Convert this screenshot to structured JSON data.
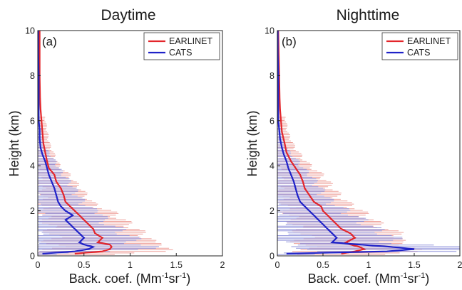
{
  "figure": {
    "x_unit_prefix": "Back. coef. (Mm",
    "x_unit_exp1": "-1",
    "x_unit_mid": "sr",
    "x_unit_exp2": "-1",
    "x_unit_suffix": ")"
  },
  "colors": {
    "earlinet": "#e3262b",
    "cats": "#1f22c8",
    "earlinet_band": "#eb8f88",
    "cats_band": "#7f83d6",
    "axis": "#222222"
  },
  "chart_data": [
    {
      "type": "line",
      "title": "Daytime",
      "panel_label": "(a)",
      "xlabel": "Back. coef. (Mm-1sr-1)",
      "ylabel": "Height (km)",
      "xlim": [
        0,
        2
      ],
      "ylim": [
        0,
        10
      ],
      "xticks": [
        "0",
        "0.5",
        "1",
        "1.5",
        "2"
      ],
      "yticks": [
        "0",
        "2",
        "4",
        "6",
        "8",
        "10"
      ],
      "grid": false,
      "legend": "top-right",
      "series": [
        {
          "name": "EARLINET",
          "color": "#e3262b",
          "height": [
            0.1,
            0.2,
            0.3,
            0.4,
            0.5,
            0.6,
            0.8,
            1.0,
            1.2,
            1.4,
            1.6,
            1.8,
            2.0,
            2.2,
            2.4,
            2.7,
            3.0,
            3.3,
            3.6,
            3.9,
            4.2,
            4.6,
            5.0,
            5.5,
            6.0,
            6.5,
            7.0,
            8.0,
            9.0,
            10.0
          ],
          "value": [
            0.4,
            0.7,
            0.78,
            0.8,
            0.78,
            0.65,
            0.7,
            0.62,
            0.6,
            0.55,
            0.5,
            0.45,
            0.4,
            0.35,
            0.3,
            0.28,
            0.25,
            0.2,
            0.18,
            0.12,
            0.1,
            0.08,
            0.06,
            0.05,
            0.04,
            0.03,
            0.025,
            0.02,
            0.02,
            0.02
          ],
          "error": [
            0.45,
            0.55,
            0.6,
            0.6,
            0.6,
            0.5,
            0.5,
            0.45,
            0.45,
            0.4,
            0.4,
            0.38,
            0.35,
            0.3,
            0.25,
            0.22,
            0.2,
            0.18,
            0.15,
            0.12,
            0.1,
            0.08,
            0.06,
            0.05,
            0.04,
            0.03,
            0.025,
            0.02,
            0.015,
            0.01
          ]
        },
        {
          "name": "CATS",
          "color": "#1f22c8",
          "height": [
            0.1,
            0.2,
            0.3,
            0.4,
            0.5,
            0.6,
            0.8,
            1.0,
            1.2,
            1.4,
            1.6,
            1.8,
            2.0,
            2.2,
            2.4,
            2.7,
            3.0,
            3.3,
            3.6,
            3.9,
            4.2,
            4.5,
            4.8,
            5.2,
            5.6,
            6.0,
            7.0,
            8.0,
            9.0,
            10.0
          ],
          "value": [
            0.05,
            0.4,
            0.55,
            0.6,
            0.5,
            0.45,
            0.5,
            0.45,
            0.4,
            0.35,
            0.3,
            0.38,
            0.3,
            0.25,
            0.22,
            0.2,
            0.18,
            0.15,
            0.12,
            0.1,
            0.08,
            0.05,
            0.03,
            0.02,
            0.02,
            0.01,
            0.01,
            0.01,
            0.005,
            0.005
          ],
          "error": [
            0.15,
            0.4,
            0.55,
            0.6,
            0.55,
            0.55,
            0.5,
            0.45,
            0.45,
            0.4,
            0.35,
            0.35,
            0.3,
            0.28,
            0.25,
            0.22,
            0.2,
            0.18,
            0.15,
            0.12,
            0.1,
            0.08,
            0.05,
            0.03,
            0.02,
            0.01,
            0.01,
            0.01,
            0.01,
            0.005
          ]
        }
      ]
    },
    {
      "type": "line",
      "title": "Nighttime",
      "panel_label": "(b)",
      "xlabel": "Back. coef. (Mm-1sr-1)",
      "ylabel": "Height (km)",
      "xlim": [
        0,
        2
      ],
      "ylim": [
        0,
        10
      ],
      "xticks": [
        "0",
        "0.5",
        "1",
        "1.5",
        "2"
      ],
      "yticks": [
        "0",
        "2",
        "4",
        "6",
        "8",
        "10"
      ],
      "grid": false,
      "legend": "top-right",
      "series": [
        {
          "name": "EARLINET",
          "color": "#e3262b",
          "height": [
            0.1,
            0.2,
            0.3,
            0.4,
            0.5,
            0.6,
            0.8,
            1.0,
            1.2,
            1.4,
            1.6,
            1.8,
            2.0,
            2.2,
            2.4,
            2.7,
            3.0,
            3.3,
            3.6,
            3.9,
            4.2,
            4.6,
            5.0,
            5.5,
            6.0,
            6.5,
            7.0,
            8.0,
            9.0,
            10.0
          ],
          "value": [
            0.7,
            0.85,
            0.95,
            0.9,
            0.8,
            0.75,
            0.85,
            0.8,
            0.7,
            0.65,
            0.6,
            0.55,
            0.5,
            0.48,
            0.4,
            0.35,
            0.3,
            0.28,
            0.25,
            0.2,
            0.15,
            0.1,
            0.08,
            0.05,
            0.04,
            0.03,
            0.025,
            0.02,
            0.015,
            0.01
          ],
          "error": [
            0.5,
            0.55,
            0.55,
            0.55,
            0.55,
            0.5,
            0.5,
            0.5,
            0.45,
            0.45,
            0.4,
            0.4,
            0.38,
            0.35,
            0.32,
            0.3,
            0.28,
            0.25,
            0.22,
            0.18,
            0.15,
            0.12,
            0.08,
            0.06,
            0.05,
            0.04,
            0.03,
            0.02,
            0.015,
            0.01
          ]
        },
        {
          "name": "CATS",
          "color": "#1f22c8",
          "height": [
            0.1,
            0.2,
            0.3,
            0.4,
            0.5,
            0.6,
            0.8,
            1.0,
            1.2,
            1.4,
            1.6,
            1.8,
            2.0,
            2.2,
            2.4,
            2.7,
            3.0,
            3.3,
            3.6,
            3.9,
            4.2,
            4.5,
            4.8,
            5.2,
            5.6,
            6.0,
            7.0,
            8.0,
            9.0,
            10.0
          ],
          "value": [
            0.1,
            1.2,
            1.5,
            1.25,
            0.9,
            0.6,
            0.65,
            0.6,
            0.55,
            0.5,
            0.45,
            0.4,
            0.35,
            0.3,
            0.25,
            0.22,
            0.2,
            0.18,
            0.15,
            0.12,
            0.1,
            0.07,
            0.05,
            0.03,
            0.02,
            0.01,
            0.01,
            0.01,
            0.005,
            0.005
          ],
          "error": [
            0.3,
            0.8,
            1.0,
            0.9,
            0.65,
            0.55,
            0.6,
            0.55,
            0.5,
            0.45,
            0.45,
            0.4,
            0.38,
            0.35,
            0.32,
            0.28,
            0.25,
            0.22,
            0.2,
            0.15,
            0.12,
            0.08,
            0.05,
            0.03,
            0.02,
            0.01,
            0.01,
            0.01,
            0.01,
            0.005
          ]
        }
      ]
    }
  ]
}
